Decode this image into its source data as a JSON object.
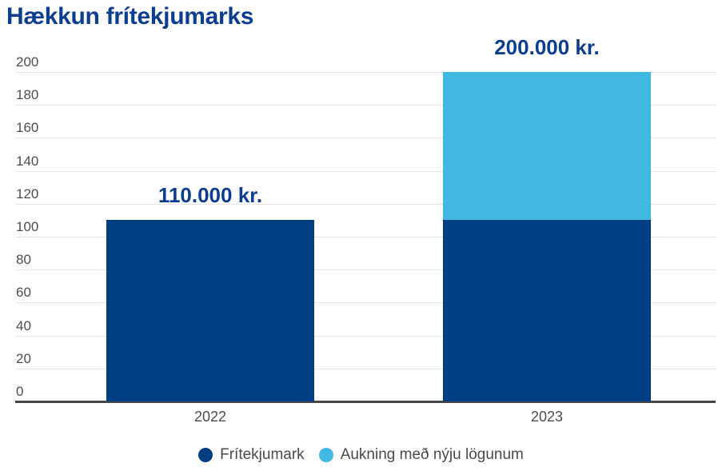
{
  "title": "Hækkun frítekjumarks",
  "colors": {
    "title_text": "#0b3d91",
    "bar_dark_blue": "#003e83",
    "bar_light_blue": "#41b8e2",
    "gridline": "#e4e4e4",
    "axis_line": "#474747",
    "tick_text": "#4d4d4d",
    "legend_text": "#4a4a4a"
  },
  "chart_data": {
    "type": "bar",
    "stacked": true,
    "title": "Hækkun frítekjumarks",
    "categories": [
      "2022",
      "2023"
    ],
    "series": [
      {
        "name": "Frítekjumark",
        "color": "#003e83",
        "values": [
          110,
          110
        ]
      },
      {
        "name": "Aukning með nýju lögunum",
        "color": "#41b8e2",
        "values": [
          0,
          90
        ]
      }
    ],
    "bar_totals": [
      110,
      200
    ],
    "bar_value_labels": [
      "110.000 kr.",
      "200.000 kr."
    ],
    "xlabel": "",
    "ylabel": "",
    "ylim": [
      0,
      200
    ],
    "ytick_step": 20,
    "ytick_labels": [
      "0",
      "20",
      "40",
      "60",
      "80",
      "100",
      "120",
      "140",
      "160",
      "180",
      "200"
    ],
    "grid": "horizontal",
    "legend_position": "bottom-center"
  }
}
